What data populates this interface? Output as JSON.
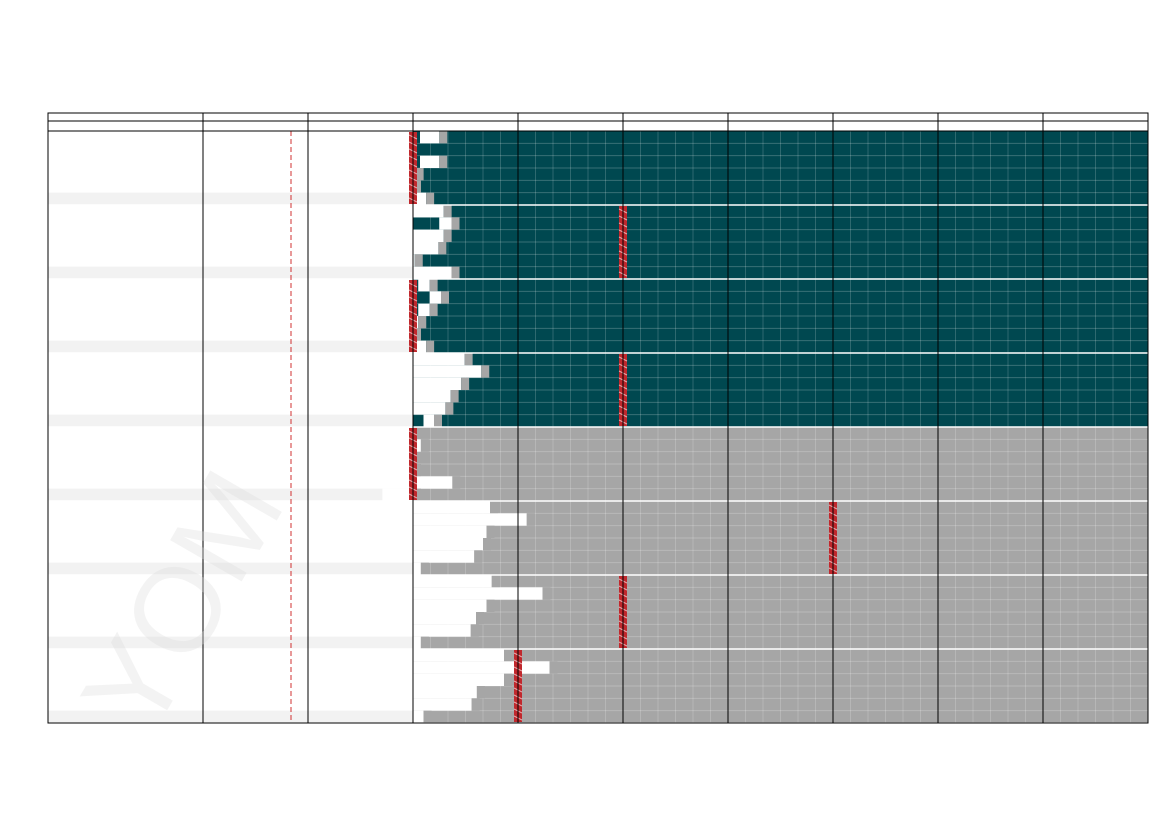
{
  "colors": {
    "teal": "#004850",
    "gray": "#a6a6a6",
    "white": "#ffffff",
    "stripe": "#f2f2f2",
    "marker": "#c0282d",
    "dashed": "#d03030"
  },
  "watermark": "YOM",
  "chart_data": {
    "type": "heatmap",
    "title": "",
    "xlabel": "",
    "ylabel": "",
    "columns": 10,
    "x_unit_per_column": 6,
    "x_range": [
      0,
      54
    ],
    "block_rows": 6,
    "blocks": [
      {
        "fill": "teal",
        "marker": 0,
        "rows": [
          [
            0.4,
            1.5
          ],
          [
            0,
            0
          ],
          [
            0.4,
            1.5
          ],
          [
            0.1,
            0.15
          ],
          [
            -0.25,
            0
          ],
          [
            0,
            0.75
          ]
        ]
      },
      {
        "fill": "teal",
        "marker": 2,
        "rows": [
          [
            0,
            1.75
          ],
          [
            1.5,
            2.2
          ],
          [
            0,
            1.75
          ],
          [
            0,
            1.45
          ],
          [
            0,
            0.1
          ],
          [
            0,
            2.2
          ]
        ]
      },
      {
        "fill": "teal",
        "marker": 0,
        "rows": [
          [
            0.3,
            0.95
          ],
          [
            0.95,
            1.6
          ],
          [
            0.3,
            0.95
          ],
          [
            0,
            0.3
          ],
          [
            -0.35,
            0
          ],
          [
            0,
            0.75
          ]
        ]
      },
      {
        "fill": "teal",
        "marker": 2,
        "rows": [
          [
            0,
            2.95
          ],
          [
            0,
            3.9
          ],
          [
            0,
            2.75
          ],
          [
            0,
            2.15
          ],
          [
            0,
            1.85
          ],
          [
            0.6,
            1.2
          ]
        ]
      },
      {
        "fill": "gray",
        "marker": 0,
        "rows": [
          [
            0,
            0
          ],
          [
            0,
            0.45
          ],
          [
            0,
            0
          ],
          [
            -0.15,
            0
          ],
          [
            0,
            2.25
          ],
          [
            -1.75,
            0
          ]
        ]
      },
      {
        "fill": "gray",
        "marker": 4,
        "rows": [
          [
            0,
            4.4
          ],
          [
            0,
            6.5
          ],
          [
            0,
            4.2
          ],
          [
            0,
            4.0
          ],
          [
            0,
            3.5
          ],
          [
            0,
            0.45
          ]
        ]
      },
      {
        "fill": "gray",
        "marker": 2,
        "rows": [
          [
            0,
            4.5
          ],
          [
            0,
            7.4
          ],
          [
            0,
            4.2
          ],
          [
            0,
            3.6
          ],
          [
            0,
            3.3
          ],
          [
            0,
            0.45
          ]
        ]
      },
      {
        "fill": "gray",
        "marker": 1,
        "rows": [
          [
            0,
            5.2
          ],
          [
            0,
            7.8
          ],
          [
            0,
            5.2
          ],
          [
            0,
            3.65
          ],
          [
            0,
            3.35
          ],
          [
            0,
            0.6
          ]
        ]
      }
    ]
  }
}
